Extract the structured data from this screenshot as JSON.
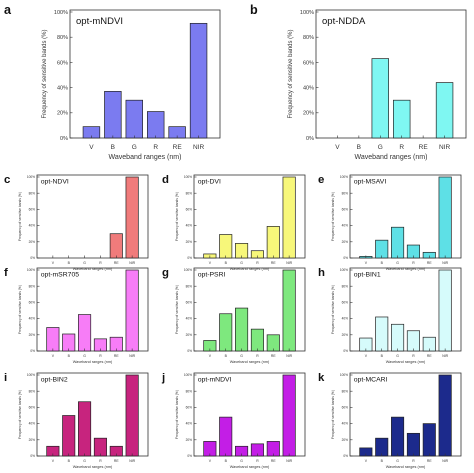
{
  "chart_data": [
    {
      "letter": "a",
      "title": "opt-mNDVI",
      "type": "bar",
      "color": "#7b7bf0",
      "categories": [
        "V",
        "B",
        "G",
        "R",
        "RE",
        "NIR"
      ],
      "values": [
        9,
        37,
        30,
        21,
        9,
        91
      ],
      "xlabel": "Waveband ranges (nm)",
      "ylabel": "Frequency of sensitive bands (%)",
      "ylim": [
        0,
        100
      ],
      "yticks": [
        "0%",
        "20%",
        "40%",
        "60%",
        "80%",
        "100%"
      ]
    },
    {
      "letter": "b",
      "title": "opt-NDDA",
      "type": "bar",
      "color": "#7ff7f2",
      "categories": [
        "V",
        "B",
        "G",
        "R",
        "RE",
        "NIR"
      ],
      "values": [
        0,
        0,
        63,
        30,
        0,
        44
      ],
      "xlabel": "Waveband ranges (nm)",
      "ylabel": "Frequency of sensitive bands (%)",
      "ylim": [
        0,
        100
      ],
      "yticks": [
        "0%",
        "20%",
        "40%",
        "60%",
        "80%",
        "100%"
      ]
    },
    {
      "letter": "c",
      "title": "opt-NDVI",
      "type": "bar",
      "color": "#f07b7b",
      "categories": [
        "V",
        "B",
        "G",
        "R",
        "RE",
        "NIR"
      ],
      "values": [
        0,
        0,
        0,
        0,
        30,
        100
      ],
      "xlabel": "Waveband ranges (nm)",
      "ylabel": "Frequency of sensitive bands (%)",
      "ylim": [
        0,
        100
      ],
      "yticks": [
        "0%",
        "20%",
        "40%",
        "60%",
        "80%",
        "100%"
      ]
    },
    {
      "letter": "d",
      "title": "opt-DVI",
      "type": "bar",
      "color": "#f7f77a",
      "categories": [
        "V",
        "B",
        "G",
        "R",
        "RE",
        "NIR"
      ],
      "values": [
        5,
        29,
        18,
        9,
        39,
        100
      ],
      "xlabel": "Waveband ranges (nm)",
      "ylabel": "Frequency of sensitive bands (%)",
      "ylim": [
        0,
        100
      ],
      "yticks": [
        "0%",
        "20%",
        "40%",
        "60%",
        "80%",
        "100%"
      ]
    },
    {
      "letter": "e",
      "title": "opt-MSAVI",
      "type": "bar",
      "color": "#5ee0e6",
      "categories": [
        "V",
        "B",
        "G",
        "R",
        "RE",
        "NIR"
      ],
      "values": [
        2,
        22,
        38,
        16,
        7,
        100
      ],
      "xlabel": "Waveband ranges (nm)",
      "ylabel": "Frequency of sensitive bands (%)",
      "ylim": [
        0,
        100
      ],
      "yticks": [
        "0%",
        "20%",
        "40%",
        "60%",
        "80%",
        "100%"
      ]
    },
    {
      "letter": "f",
      "title": "opt-mSR705",
      "type": "bar",
      "color": "#f77df7",
      "categories": [
        "V",
        "B",
        "G",
        "R",
        "RE",
        "NIR"
      ],
      "values": [
        29,
        21,
        45,
        15,
        17,
        100
      ],
      "xlabel": "Waveband ranges (nm)",
      "ylabel": "Frequency of sensitive bands (%)",
      "ylim": [
        0,
        100
      ],
      "yticks": [
        "0%",
        "20%",
        "40%",
        "60%",
        "80%",
        "100%"
      ]
    },
    {
      "letter": "g",
      "title": "opt-PSRI",
      "type": "bar",
      "color": "#7ee87e",
      "categories": [
        "V",
        "B",
        "G",
        "R",
        "RE",
        "NIR"
      ],
      "values": [
        13,
        46,
        53,
        27,
        20,
        100
      ],
      "xlabel": "Waveband ranges (nm)",
      "ylabel": "Frequency of sensitive bands (%)",
      "ylim": [
        0,
        100
      ],
      "yticks": [
        "0%",
        "20%",
        "40%",
        "60%",
        "80%",
        "100%"
      ]
    },
    {
      "letter": "h",
      "title": "opt-BIN1",
      "type": "bar",
      "color": "#d6fbfb",
      "categories": [
        "V",
        "B",
        "G",
        "R",
        "RE",
        "NIR"
      ],
      "values": [
        16,
        42,
        33,
        25,
        17,
        100
      ],
      "xlabel": "Waveband ranges (nm)",
      "ylabel": "Frequency of sensitive bands (%)",
      "ylim": [
        0,
        100
      ],
      "yticks": [
        "0%",
        "20%",
        "40%",
        "60%",
        "80%",
        "100%"
      ]
    },
    {
      "letter": "i",
      "title": "opt-BIN2",
      "type": "bar",
      "color": "#c7247e",
      "categories": [
        "V",
        "B",
        "G",
        "R",
        "RE",
        "NIR"
      ],
      "values": [
        12,
        50,
        67,
        22,
        12,
        100
      ],
      "xlabel": "Waveband ranges (nm)",
      "ylabel": "Frequency of sensitive bands (%)",
      "ylim": [
        0,
        100
      ],
      "yticks": [
        "0%",
        "20%",
        "40%",
        "60%",
        "80%",
        "100%"
      ]
    },
    {
      "letter": "j",
      "title": "opt-mNDVI",
      "type": "bar",
      "color": "#c31ee6",
      "categories": [
        "V",
        "B",
        "G",
        "R",
        "RE",
        "NIR"
      ],
      "values": [
        18,
        48,
        12,
        15,
        18,
        100
      ],
      "xlabel": "Waveband ranges (nm)",
      "ylabel": "Frequency of sensitive bands (%)",
      "ylim": [
        0,
        100
      ],
      "yticks": [
        "0%",
        "20%",
        "40%",
        "60%",
        "80%",
        "100%"
      ]
    },
    {
      "letter": "k",
      "title": "opt-MCARI",
      "type": "bar",
      "color": "#1c2a8c",
      "categories": [
        "V",
        "B",
        "G",
        "R",
        "RE",
        "NIR"
      ],
      "values": [
        10,
        22,
        48,
        28,
        40,
        100
      ],
      "xlabel": "Waveband ranges (nm)",
      "ylabel": "Frequency of sensitive bands (%)",
      "ylim": [
        0,
        100
      ],
      "yticks": [
        "0%",
        "20%",
        "40%",
        "60%",
        "80%",
        "100%"
      ]
    }
  ]
}
